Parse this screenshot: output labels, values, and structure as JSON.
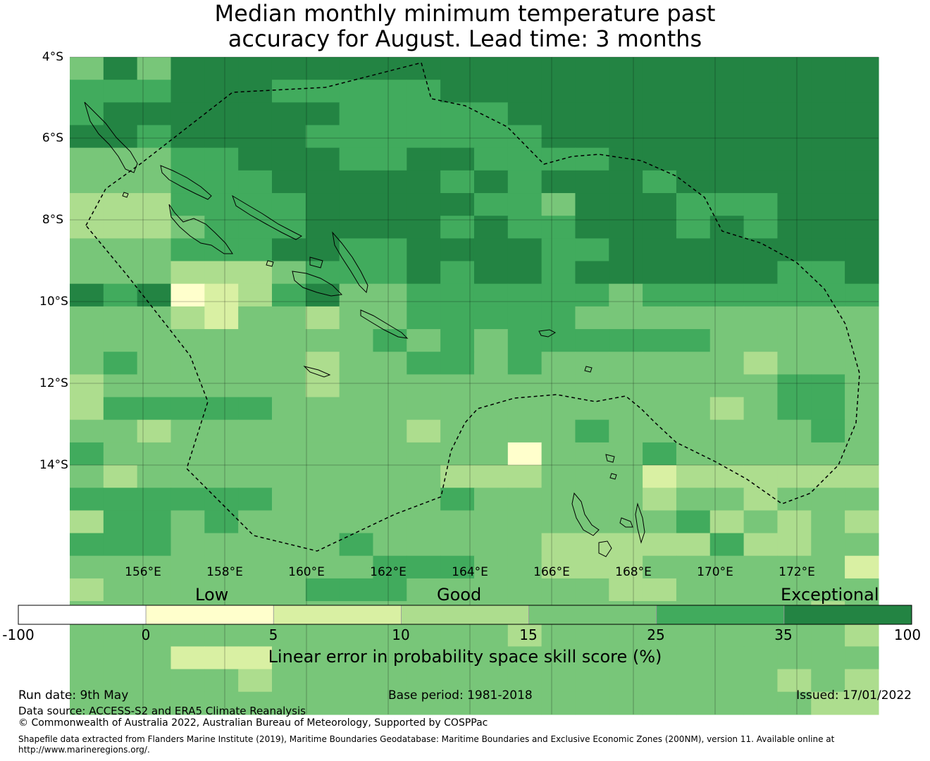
{
  "title": {
    "line1": "Median monthly minimum temperature past",
    "line2": "accuracy for August. Lead time: 3 months"
  },
  "map": {
    "lat_labels": [
      "4°S",
      "6°S",
      "8°S",
      "10°S",
      "12°S",
      "14°S"
    ],
    "lon_labels": [
      "156°E",
      "158°E",
      "160°E",
      "162°E",
      "164°E",
      "166°E",
      "168°E",
      "170°E",
      "172°E"
    ],
    "lon_range": [
      154.2,
      174.0
    ],
    "lat_range": [
      -16.3,
      -4.0
    ],
    "grid_on": true,
    "eez_boundary": "dashed",
    "cell_levels_legend": "0=<0, 1=0-5, 2=5-10, 3=10-15, 4=15-25, 5=25-35, 6=35-100",
    "cells": [
      "464666666666666666666666",
      "555666555556666666666666",
      "566666665555566666666666",
      "665666655555556666666666",
      "444556665566555566666666",
      "444555666665656665666666",
      "333555566666554666555666",
      "333455566665655666565666",
      "444555665566665566666666",
      "444333455565665666666556",
      "656123564455555545555555",
      "444324434455555444444444",
      "444444444545455555544444",
      "454444434455454444443444",
      "344444434444444444444554",
      "355555444444444444434554",
      "443444444434444544444454",
      "544444444444414445444444",
      "434444444443334442333333",
      "555555444445444443443444",
      "355454444444444444534343",
      "555444445444443333353344",
      "444444444555443334444442",
      "344444455544444433444444",
      "444444444444444444444434",
      "444444444444434444444443",
      "444222444444444444444444",
      "444443444444444444444343",
      "444444444444444444444433"
    ]
  },
  "legend": {
    "categories": [
      "Low",
      "Good",
      "Exceptional"
    ],
    "ticks": [
      "-100",
      "0",
      "5",
      "10",
      "15",
      "25",
      "35",
      "100"
    ],
    "colors": [
      "#ffffff",
      "#ffffcc",
      "#d9f0a3",
      "#addd8e",
      "#78c679",
      "#41ab5d",
      "#238443"
    ],
    "title": "Linear error in probability space skill score (%)"
  },
  "footer": {
    "run_date": "Run date: 9th May",
    "base_period": "Base period: 1981-2018",
    "issued": "Issued: 17/01/2022",
    "data_source": "Data source: ACCESS-S2 and ERA5 Climate Reanalysis",
    "copyright": "© Commonwealth of Australia 2022, Australian Bureau of Meteorology, Supported by COSPPac",
    "shapefile_line1": "Shapefile data extracted from Flanders Marine Institute (2019), Maritime Boundaries Geodatabase: Maritime Boundaries and Exclusive Economic Zones (200NM), version 11. Available online at",
    "shapefile_line2": "http://www.marineregions.org/."
  }
}
